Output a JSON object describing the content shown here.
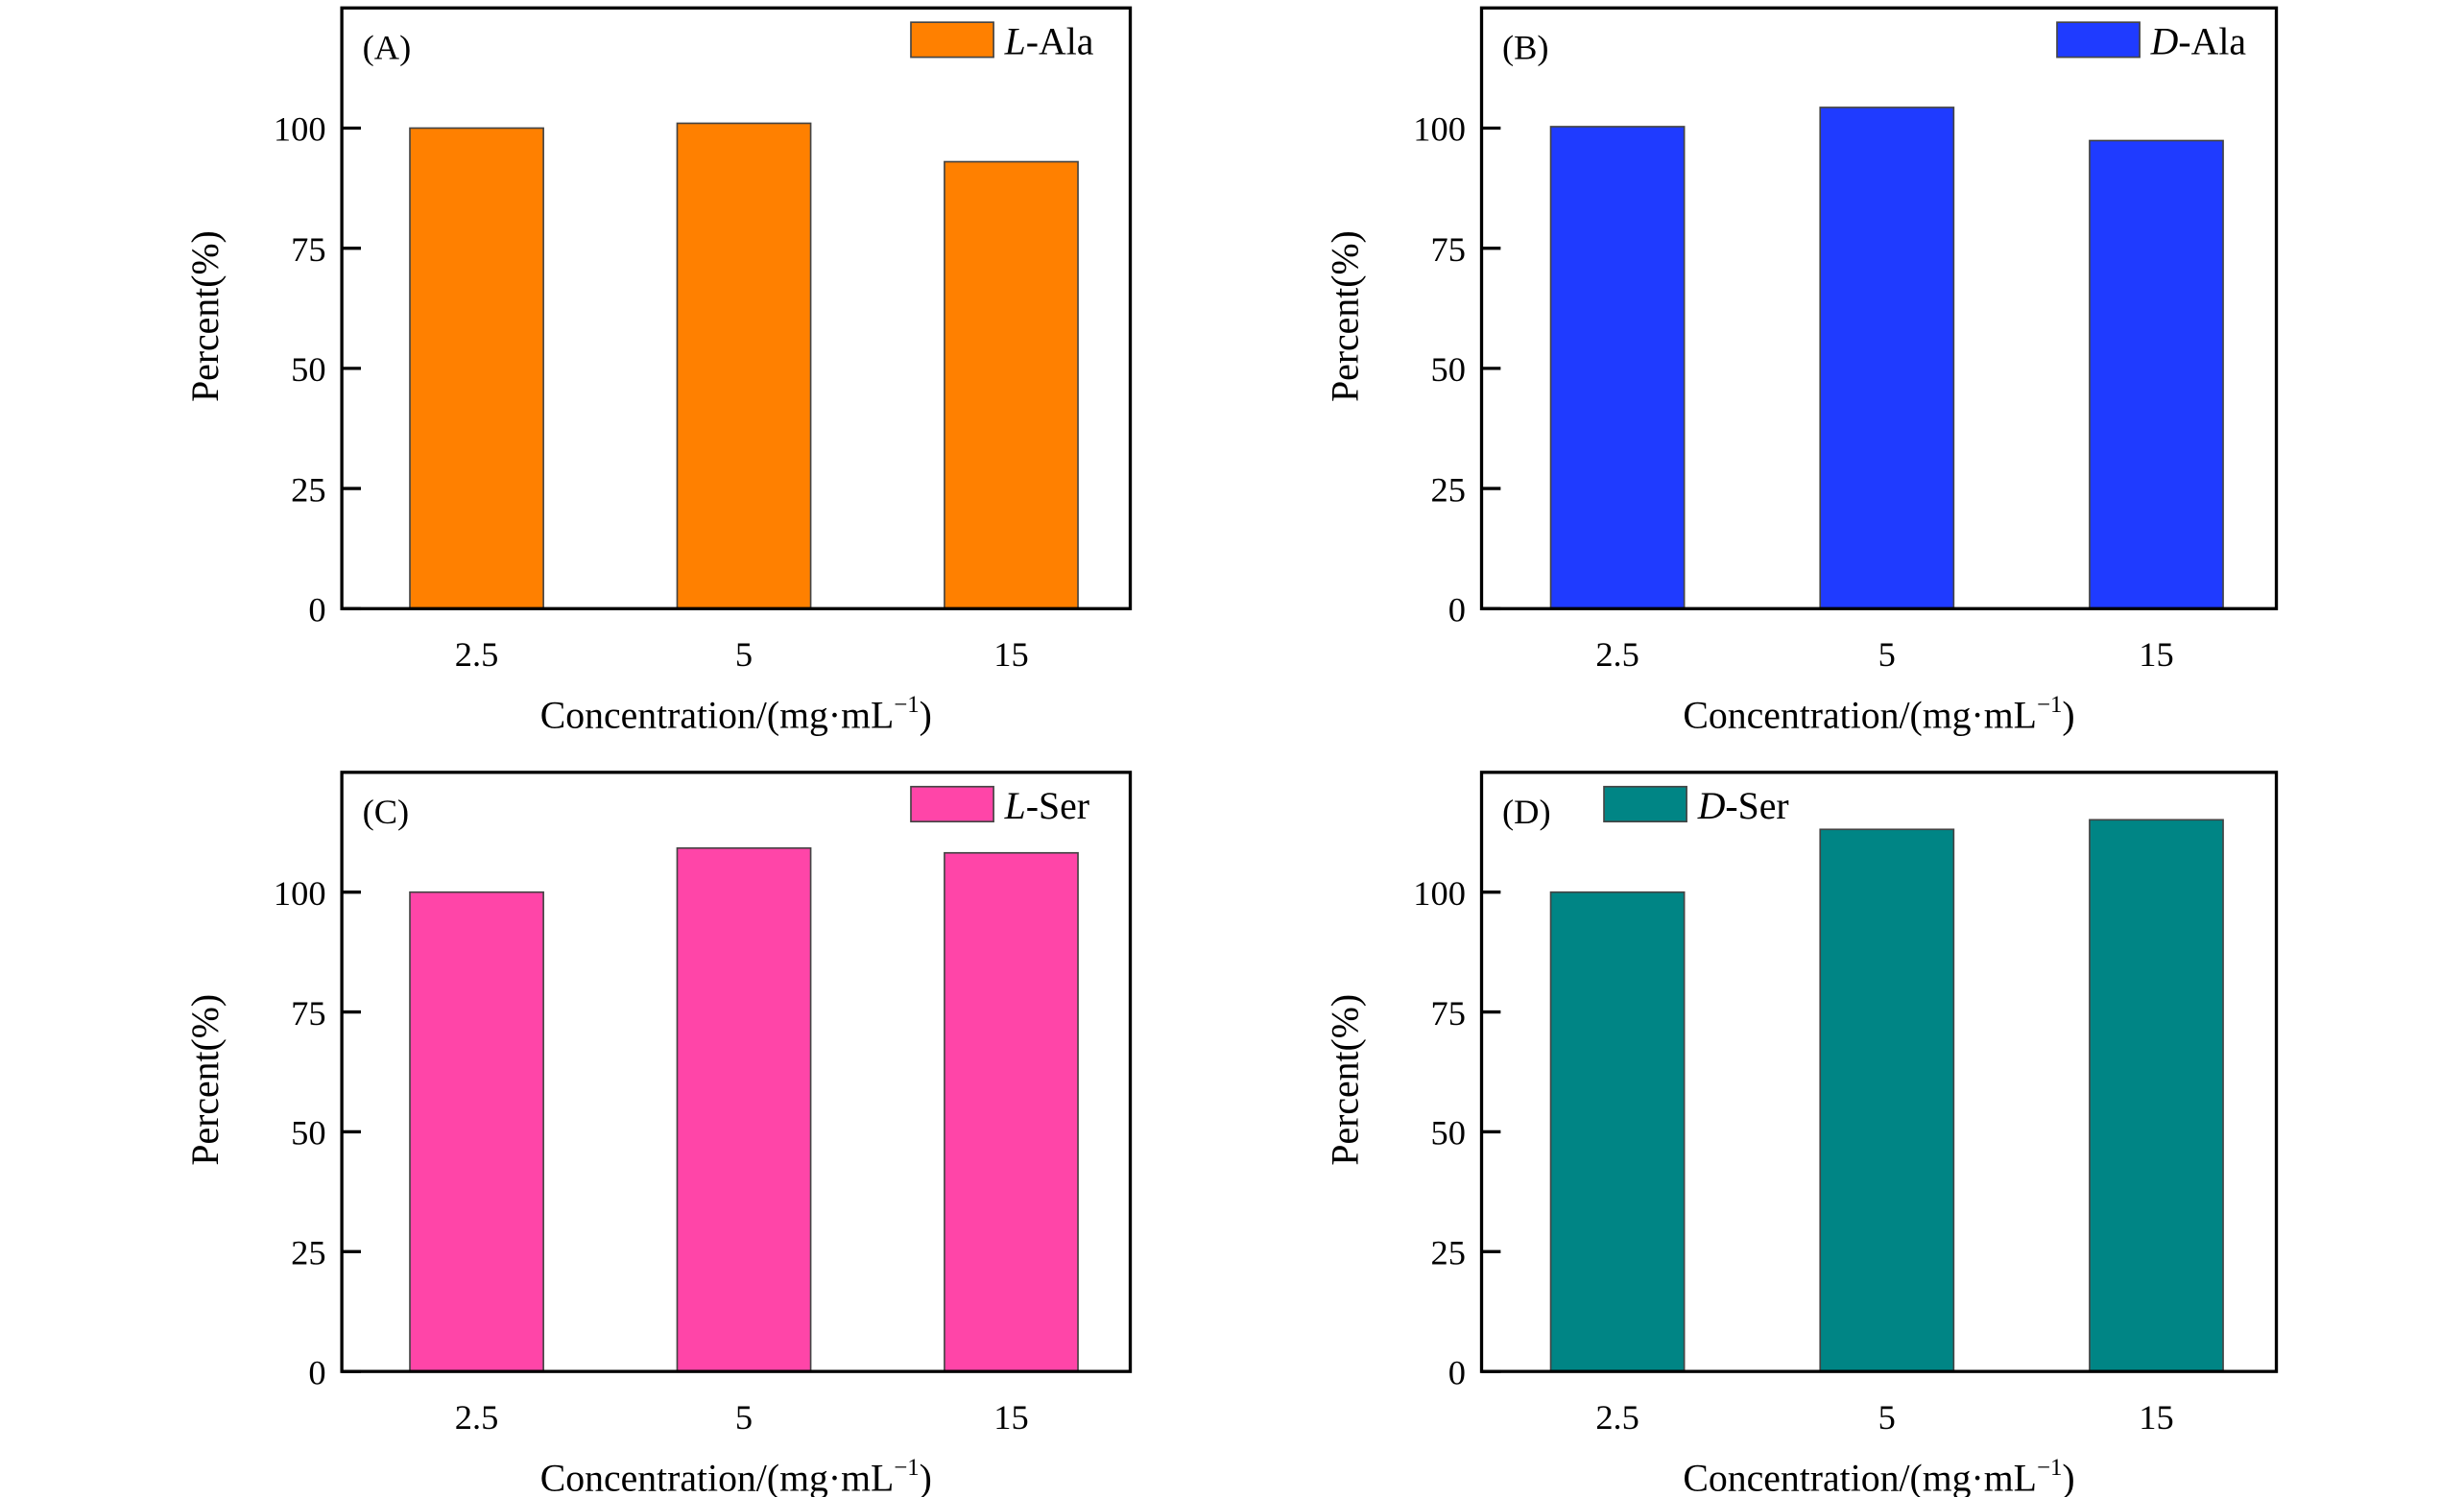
{
  "chart_data": [
    {
      "type": "bar",
      "panel": "(A)",
      "legend": {
        "prefix": "L",
        "suffix": "-Ala"
      },
      "color": "#FF8000",
      "categories": [
        "2.5",
        "5",
        "15"
      ],
      "values": [
        100,
        101,
        93
      ],
      "xlabel": "Concentration/(mg·mL",
      "xlabel_sup": "−1",
      "xlabel_end": ")",
      "ylabel": "Percent(%)",
      "ylim": [
        0,
        125
      ],
      "yticks": [
        0,
        25,
        50,
        75,
        100
      ],
      "legend_position": "top-right"
    },
    {
      "type": "bar",
      "panel": "(B)",
      "legend": {
        "prefix": "D",
        "suffix": "-Ala"
      },
      "color": "#1F3BFF",
      "categories": [
        "2.5",
        "5",
        "15"
      ],
      "values": [
        100.3,
        104.3,
        97.4
      ],
      "xlabel": "Concentration/(mg·mL",
      "xlabel_sup": "−1",
      "xlabel_end": ")",
      "ylabel": "Percent(%)",
      "ylim": [
        0,
        125
      ],
      "yticks": [
        0,
        25,
        50,
        75,
        100
      ],
      "legend_position": "top-right"
    },
    {
      "type": "bar",
      "panel": "(C)",
      "legend": {
        "prefix": "L",
        "suffix": "-Ser"
      },
      "color": "#FF45A8",
      "categories": [
        "2.5",
        "5",
        "15"
      ],
      "values": [
        100,
        109.2,
        108.2
      ],
      "xlabel": "Concentration/(mg·mL",
      "xlabel_sup": "−1",
      "xlabel_end": ")",
      "ylabel": "Percent(%)",
      "ylim": [
        0,
        125
      ],
      "yticks": [
        0,
        25,
        50,
        75,
        100
      ],
      "legend_position": "top-right"
    },
    {
      "type": "bar",
      "panel": "(D)",
      "legend": {
        "prefix": "D",
        "suffix": "-Ser"
      },
      "color": "#008585",
      "categories": [
        "2.5",
        "5",
        "15"
      ],
      "values": [
        100,
        113.1,
        115.1
      ],
      "xlabel": "Concentration/(mg·mL",
      "xlabel_sup": "−1",
      "xlabel_end": ")",
      "ylabel": "Percent(%)",
      "ylim": [
        0,
        125
      ],
      "yticks": [
        0,
        25,
        50,
        75,
        100
      ],
      "legend_position": "top-left"
    }
  ]
}
